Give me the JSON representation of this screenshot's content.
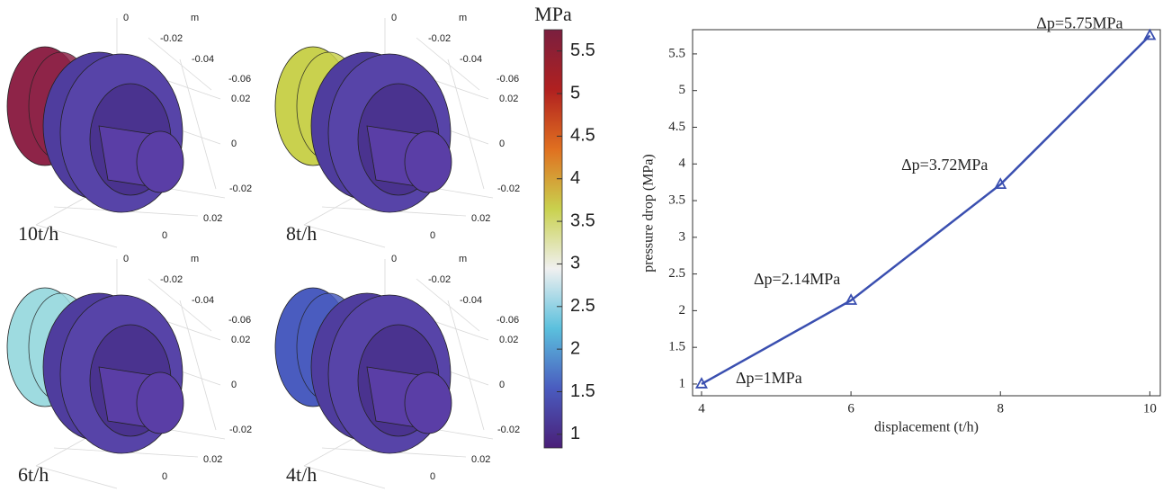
{
  "renders": {
    "axis_labels": [
      "0",
      "m",
      "-0.02",
      "-0.04",
      "-0.06",
      "0.02",
      "0",
      "-0.02",
      "0.02",
      "0"
    ],
    "panels": [
      {
        "label": "10t/h",
        "color": "#8e2448"
      },
      {
        "label": "8t/h",
        "color": "#c9d14e"
      },
      {
        "label": "6t/h",
        "color": "#9edbe0"
      },
      {
        "label": "4t/h",
        "color": "#4a5cbf"
      }
    ]
  },
  "colorbar": {
    "title": "MPa",
    "lim": [
      0.84,
      5.75
    ],
    "ticks": [
      1,
      1.5,
      2,
      2.5,
      3,
      3.5,
      4,
      4.5,
      5,
      5.5
    ],
    "colors": [
      "#4a1f78",
      "#4a5cbf",
      "#5bc0dd",
      "#f0f0f0",
      "#c9d14e",
      "#e07020",
      "#b02020",
      "#7a1f3f"
    ]
  },
  "chart_data": {
    "type": "line",
    "x": [
      4,
      6,
      8,
      10
    ],
    "values": [
      1,
      2.14,
      3.72,
      5.75
    ],
    "value_labels": [
      "Δp=1MPa",
      "Δp=2.14MPa",
      "Δp=3.72MPa",
      "Δp=5.75MPa"
    ],
    "color": "#3a4fb0",
    "xlabel": "displacement (t/h)",
    "ylabel": "pressure drop (MPa)",
    "xlim": [
      3.88,
      10.14
    ],
    "ylim": [
      0.84,
      5.83
    ],
    "xticks": [
      4,
      6,
      8,
      10
    ],
    "yticks": [
      1,
      1.5,
      2,
      2.5,
      3,
      3.5,
      4,
      4.5,
      5,
      5.5
    ]
  }
}
